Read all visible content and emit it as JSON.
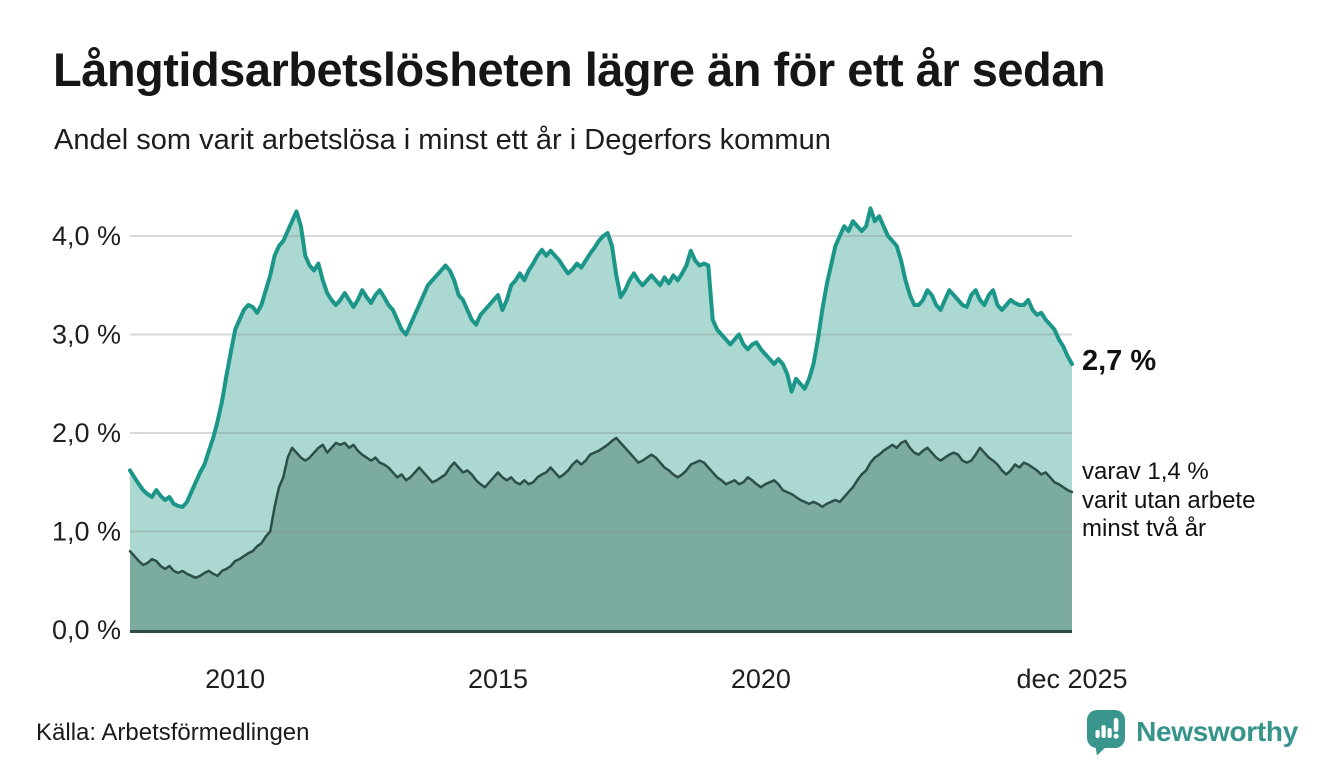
{
  "header": {
    "title": "Långtidsarbetslösheten lägre än för ett år sedan",
    "subtitle": "Andel som varit arbetslösa i minst ett år i Degerfors kommun"
  },
  "annotations": {
    "last_value_label": "2,7 %",
    "secondary_line1": "varav 1,4 %",
    "secondary_line2": "varit utan arbete",
    "secondary_line3": "minst två år"
  },
  "footer": {
    "source": "Källa: Arbetsförmedlingen",
    "brand": "Newsworthy"
  },
  "colors": {
    "line_one_year": "#1b9688",
    "fill_one_year": "#abd8d1",
    "line_two_year": "#2d4f49",
    "fill_two_year": "#7caba0",
    "gridline": "#8a9490",
    "axis_line": "#2c4b45",
    "tick_text": "#1f1f1f",
    "brand_teal": "#3a968c"
  },
  "chart_data": {
    "type": "area",
    "title": "Långtidsarbetslösheten lägre än för ett år sedan",
    "subtitle": "Andel som varit arbetslösa i minst ett år i Degerfors kommun",
    "unit": "%",
    "x_start": "2008-01",
    "x_end": "2025-12",
    "x_ticks": [
      {
        "label": "2010",
        "month_index": 24
      },
      {
        "label": "2015",
        "month_index": 84
      },
      {
        "label": "2020",
        "month_index": 144
      },
      {
        "label": "dec 2025",
        "month_index": 215
      }
    ],
    "y_ticks": [
      {
        "label": "0,0 %",
        "value": 0
      },
      {
        "label": "1,0 %",
        "value": 1
      },
      {
        "label": "2,0 %",
        "value": 2
      },
      {
        "label": "3,0 %",
        "value": 3
      },
      {
        "label": "4,0 %",
        "value": 4
      }
    ],
    "ylim": [
      0,
      4.45
    ],
    "grid": true,
    "legend_position": "annotations-right",
    "last_values": {
      "one_year": 2.7,
      "two_year": 1.4
    },
    "series": [
      {
        "name": "Arbetslösa minst ett år",
        "values": [
          1.62,
          1.55,
          1.48,
          1.42,
          1.38,
          1.35,
          1.42,
          1.36,
          1.32,
          1.35,
          1.28,
          1.26,
          1.25,
          1.3,
          1.4,
          1.5,
          1.6,
          1.68,
          1.82,
          1.95,
          2.12,
          2.32,
          2.58,
          2.82,
          3.05,
          3.15,
          3.25,
          3.3,
          3.28,
          3.22,
          3.3,
          3.45,
          3.6,
          3.8,
          3.9,
          3.95,
          4.05,
          4.15,
          4.25,
          4.1,
          3.8,
          3.7,
          3.65,
          3.72,
          3.55,
          3.42,
          3.35,
          3.3,
          3.35,
          3.42,
          3.35,
          3.28,
          3.35,
          3.45,
          3.38,
          3.32,
          3.4,
          3.45,
          3.38,
          3.3,
          3.25,
          3.15,
          3.05,
          3.0,
          3.1,
          3.2,
          3.3,
          3.4,
          3.5,
          3.55,
          3.6,
          3.65,
          3.7,
          3.65,
          3.55,
          3.4,
          3.35,
          3.25,
          3.15,
          3.1,
          3.2,
          3.25,
          3.3,
          3.35,
          3.4,
          3.25,
          3.35,
          3.5,
          3.55,
          3.62,
          3.55,
          3.65,
          3.72,
          3.8,
          3.86,
          3.8,
          3.85,
          3.8,
          3.75,
          3.68,
          3.62,
          3.66,
          3.72,
          3.68,
          3.75,
          3.82,
          3.88,
          3.95,
          4.0,
          4.03,
          3.9,
          3.6,
          3.38,
          3.45,
          3.55,
          3.62,
          3.55,
          3.5,
          3.55,
          3.6,
          3.55,
          3.5,
          3.58,
          3.52,
          3.6,
          3.55,
          3.62,
          3.7,
          3.85,
          3.75,
          3.7,
          3.72,
          3.7,
          3.15,
          3.05,
          3.0,
          2.95,
          2.9,
          2.95,
          3.0,
          2.9,
          2.85,
          2.9,
          2.92,
          2.85,
          2.8,
          2.75,
          2.7,
          2.75,
          2.7,
          2.6,
          2.42,
          2.55,
          2.5,
          2.45,
          2.55,
          2.7,
          2.95,
          3.25,
          3.5,
          3.7,
          3.9,
          4.0,
          4.1,
          4.05,
          4.15,
          4.1,
          4.05,
          4.1,
          4.28,
          4.15,
          4.2,
          4.1,
          4.0,
          3.95,
          3.9,
          3.75,
          3.55,
          3.4,
          3.3,
          3.3,
          3.35,
          3.45,
          3.4,
          3.3,
          3.25,
          3.35,
          3.45,
          3.4,
          3.35,
          3.3,
          3.28,
          3.4,
          3.45,
          3.35,
          3.3,
          3.4,
          3.45,
          3.3,
          3.25,
          3.3,
          3.35,
          3.32,
          3.3,
          3.3,
          3.35,
          3.25,
          3.2,
          3.22,
          3.15,
          3.1,
          3.05,
          2.95,
          2.88,
          2.78,
          2.7
        ]
      },
      {
        "name": "Arbetslösa minst två år",
        "values": [
          0.8,
          0.75,
          0.7,
          0.66,
          0.68,
          0.72,
          0.7,
          0.65,
          0.62,
          0.65,
          0.6,
          0.58,
          0.6,
          0.57,
          0.55,
          0.53,
          0.55,
          0.58,
          0.6,
          0.57,
          0.55,
          0.6,
          0.62,
          0.65,
          0.7,
          0.72,
          0.75,
          0.78,
          0.8,
          0.85,
          0.88,
          0.95,
          1.0,
          1.25,
          1.45,
          1.55,
          1.75,
          1.85,
          1.8,
          1.75,
          1.72,
          1.75,
          1.8,
          1.85,
          1.88,
          1.8,
          1.85,
          1.9,
          1.88,
          1.9,
          1.85,
          1.88,
          1.82,
          1.78,
          1.75,
          1.72,
          1.75,
          1.7,
          1.68,
          1.65,
          1.6,
          1.55,
          1.58,
          1.52,
          1.55,
          1.6,
          1.65,
          1.6,
          1.55,
          1.5,
          1.52,
          1.55,
          1.58,
          1.65,
          1.7,
          1.65,
          1.6,
          1.62,
          1.58,
          1.52,
          1.48,
          1.45,
          1.5,
          1.55,
          1.6,
          1.55,
          1.52,
          1.55,
          1.5,
          1.48,
          1.52,
          1.48,
          1.5,
          1.55,
          1.58,
          1.6,
          1.65,
          1.6,
          1.55,
          1.58,
          1.62,
          1.68,
          1.72,
          1.68,
          1.72,
          1.78,
          1.8,
          1.82,
          1.85,
          1.88,
          1.92,
          1.95,
          1.9,
          1.85,
          1.8,
          1.75,
          1.7,
          1.72,
          1.75,
          1.78,
          1.75,
          1.7,
          1.65,
          1.62,
          1.58,
          1.55,
          1.58,
          1.62,
          1.68,
          1.7,
          1.72,
          1.7,
          1.65,
          1.6,
          1.55,
          1.52,
          1.48,
          1.5,
          1.52,
          1.48,
          1.5,
          1.55,
          1.52,
          1.48,
          1.45,
          1.48,
          1.5,
          1.52,
          1.48,
          1.42,
          1.4,
          1.38,
          1.35,
          1.32,
          1.3,
          1.28,
          1.3,
          1.28,
          1.25,
          1.28,
          1.3,
          1.32,
          1.3,
          1.35,
          1.4,
          1.45,
          1.52,
          1.58,
          1.62,
          1.7,
          1.75,
          1.78,
          1.82,
          1.85,
          1.88,
          1.85,
          1.9,
          1.92,
          1.85,
          1.8,
          1.78,
          1.82,
          1.85,
          1.8,
          1.75,
          1.72,
          1.75,
          1.78,
          1.8,
          1.78,
          1.72,
          1.7,
          1.72,
          1.78,
          1.85,
          1.8,
          1.75,
          1.72,
          1.68,
          1.62,
          1.58,
          1.62,
          1.68,
          1.65,
          1.7,
          1.68,
          1.65,
          1.62,
          1.58,
          1.6,
          1.55,
          1.5,
          1.48,
          1.45,
          1.42,
          1.4
        ]
      }
    ]
  }
}
